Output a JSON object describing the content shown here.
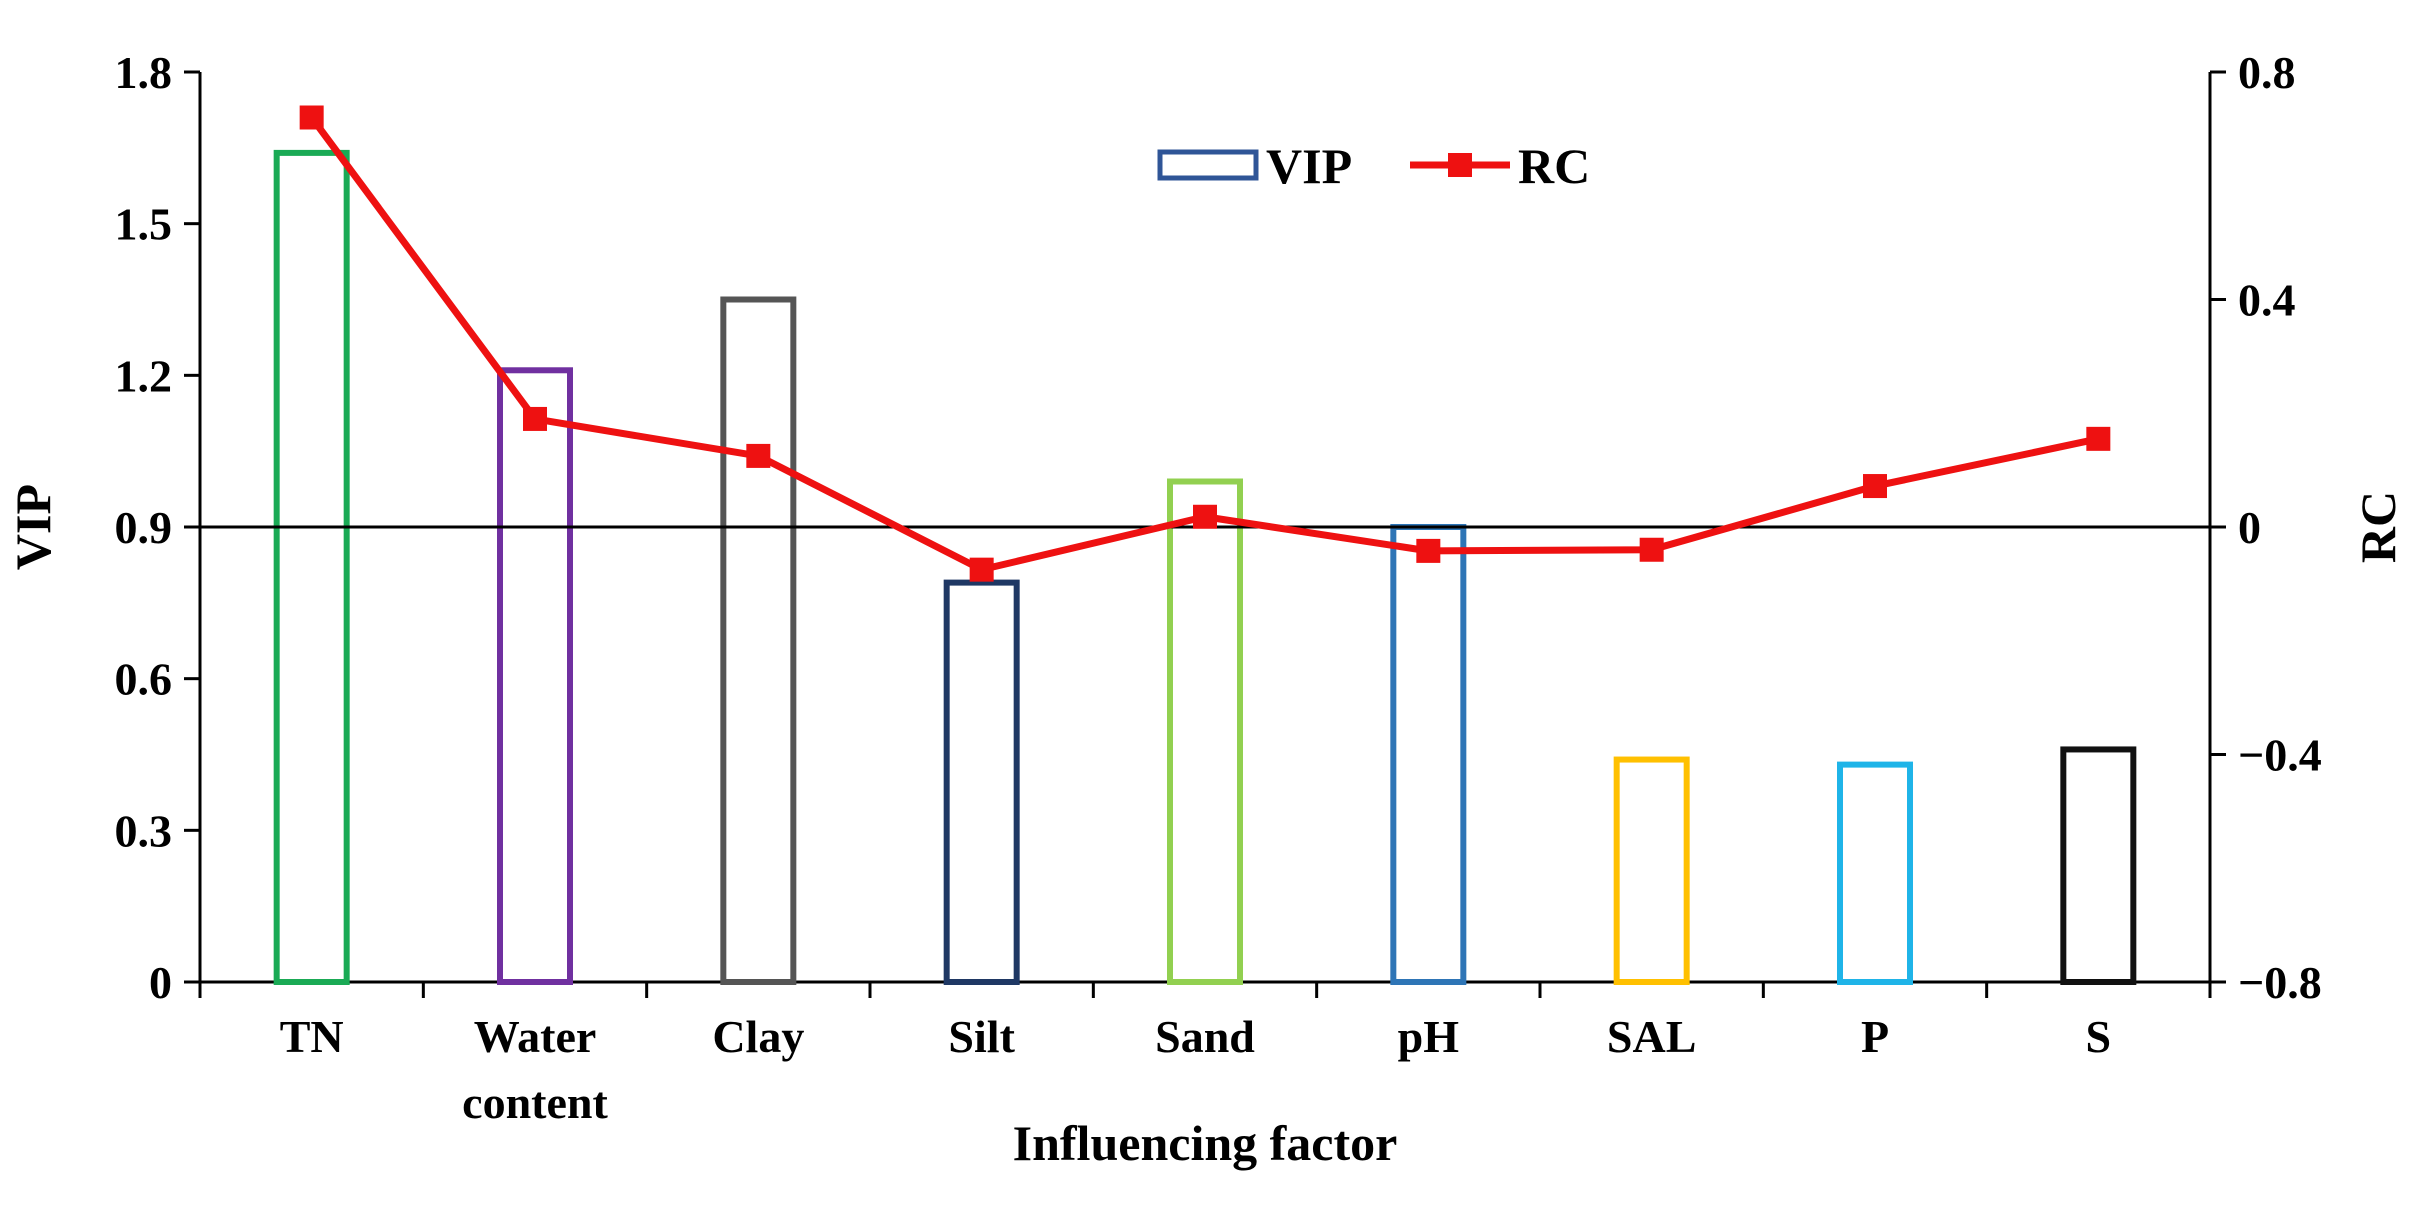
{
  "chart_data": {
    "type": "bar+line",
    "categories": [
      {
        "lines": [
          "TN"
        ]
      },
      {
        "lines": [
          "Water",
          "content"
        ]
      },
      {
        "lines": [
          "Clay"
        ]
      },
      {
        "lines": [
          "Silt"
        ]
      },
      {
        "lines": [
          "Sand"
        ]
      },
      {
        "lines": [
          "pH"
        ]
      },
      {
        "lines": [
          "SAL"
        ]
      },
      {
        "lines": [
          "P"
        ]
      },
      {
        "lines": [
          "S"
        ]
      }
    ],
    "series": [
      {
        "name": "VIP",
        "type": "bar",
        "axis": "left",
        "values": [
          1.64,
          1.21,
          1.35,
          0.79,
          0.99,
          0.9,
          0.44,
          0.43,
          0.46
        ],
        "colors": [
          "#1aaa55",
          "#7030a0",
          "#555555",
          "#1f3864",
          "#92d050",
          "#2e75b6",
          "#ffc000",
          "#1fb4e8",
          "#111111"
        ]
      },
      {
        "name": "RC",
        "type": "line",
        "axis": "right",
        "values": [
          0.72,
          0.19,
          0.125,
          -0.075,
          0.018,
          -0.042,
          -0.04,
          0.072,
          0.155
        ],
        "color": "#ee1111"
      }
    ],
    "xlabel": "Influencing factor",
    "ylabel_left": "VIP",
    "ylabel_right": "RC",
    "ylim_left": [
      0,
      1.8
    ],
    "yticks_left": [
      "0",
      "0.3",
      "0.6",
      "0.9",
      "1.2",
      "1.5",
      "1.8"
    ],
    "ylim_right": [
      -0.8,
      0.8
    ],
    "yticks_right": [
      "−0.8",
      "−0.4",
      "0",
      "0.4",
      "0.8"
    ],
    "reference_line": {
      "axis": "right",
      "value": 0
    },
    "legend": {
      "position": "top-center",
      "entries": [
        "VIP",
        "RC"
      ]
    },
    "grid": false
  }
}
